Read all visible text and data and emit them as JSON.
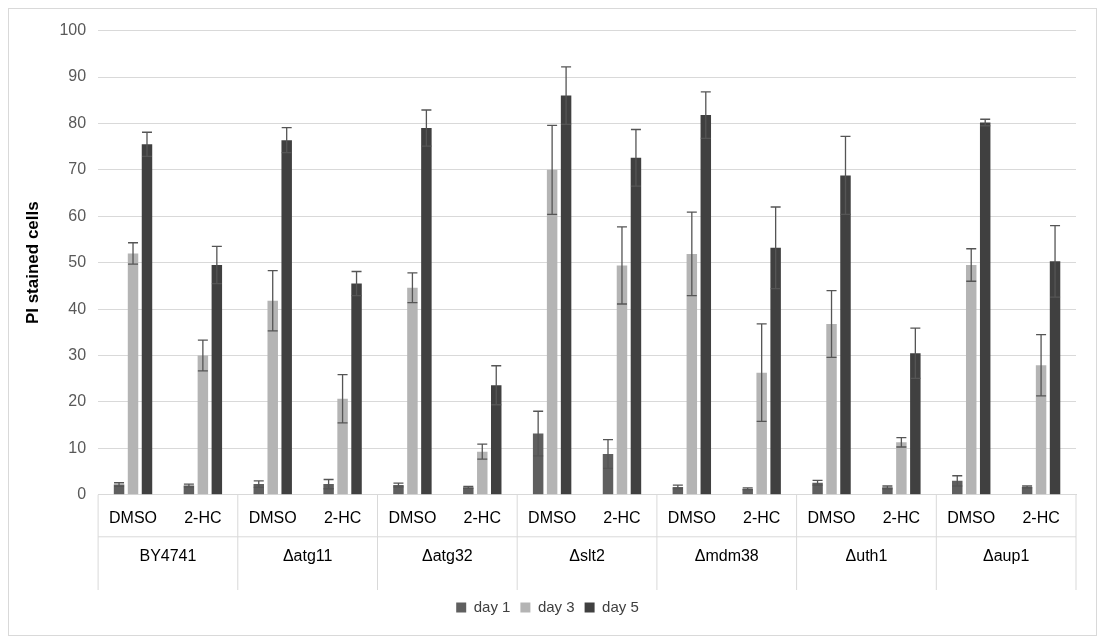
{
  "chart_data": {
    "type": "bar",
    "ylabel": "PI stained cells",
    "categories": [
      "DMSO",
      "2-HC",
      "DMSO",
      "2-HC",
      "DMSO",
      "2-HC",
      "DMSO",
      "2-HC",
      "DMSO",
      "2-HC",
      "DMSO",
      "2-HC",
      "DMSO",
      "2-HC"
    ],
    "annotations": [
      "BY4741",
      "Δatg11",
      "Δatg32",
      "Δslt2",
      "Δmdm38",
      "Δuth1",
      "Δaup1"
    ],
    "series": [
      {
        "name": "day 1",
        "color": "#5f5f5f",
        "values": [
          2.2,
          2.0,
          2.3,
          2.3,
          2.1,
          1.6,
          13.2,
          8.8,
          1.7,
          1.3,
          2.6,
          1.6,
          3.0,
          1.7
        ],
        "errors": [
          0.4,
          0.3,
          0.7,
          1.0,
          0.4,
          0.2,
          4.8,
          3.1,
          0.4,
          0.2,
          0.5,
          0.3,
          1.1,
          0.2
        ]
      },
      {
        "name": "day 3",
        "color": "#b4b4b4",
        "values": [
          52,
          30,
          41.8,
          20.7,
          44.6,
          9.3,
          70,
          49.4,
          51.9,
          26.3,
          36.8,
          11.3,
          49.5,
          27.9
        ],
        "errors": [
          2.3,
          3.3,
          6.5,
          5.2,
          3.2,
          1.6,
          9.6,
          8.3,
          9,
          10.5,
          7.2,
          1,
          3.5,
          6.6
        ]
      },
      {
        "name": "day 5",
        "color": "#404040",
        "values": [
          75.5,
          49.5,
          76.4,
          45.5,
          79,
          23.6,
          86,
          72.6,
          81.8,
          53.2,
          68.8,
          30.5,
          80.2,
          50.3
        ],
        "errors": [
          2.6,
          4,
          2.7,
          2.6,
          3.9,
          4.2,
          6.2,
          6.1,
          5,
          8.8,
          8.4,
          5.4,
          0.7,
          7.7
        ]
      }
    ],
    "ylim": [
      0,
      100
    ],
    "yticks": [
      0,
      10,
      20,
      30,
      40,
      50,
      60,
      70,
      80,
      90,
      100
    ],
    "grid": "y",
    "legend": "bottom"
  }
}
